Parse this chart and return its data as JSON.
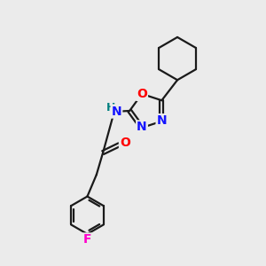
{
  "bg_color": "#ebebeb",
  "line_color": "#1a1a1a",
  "bond_width": 1.6,
  "atom_colors": {
    "N": "#1414ff",
    "O": "#ff0000",
    "F": "#ff00cc",
    "H": "#008080",
    "C": "#1a1a1a"
  },
  "font_size": 10,
  "fig_size": [
    3.0,
    3.0
  ],
  "dpi": 100
}
